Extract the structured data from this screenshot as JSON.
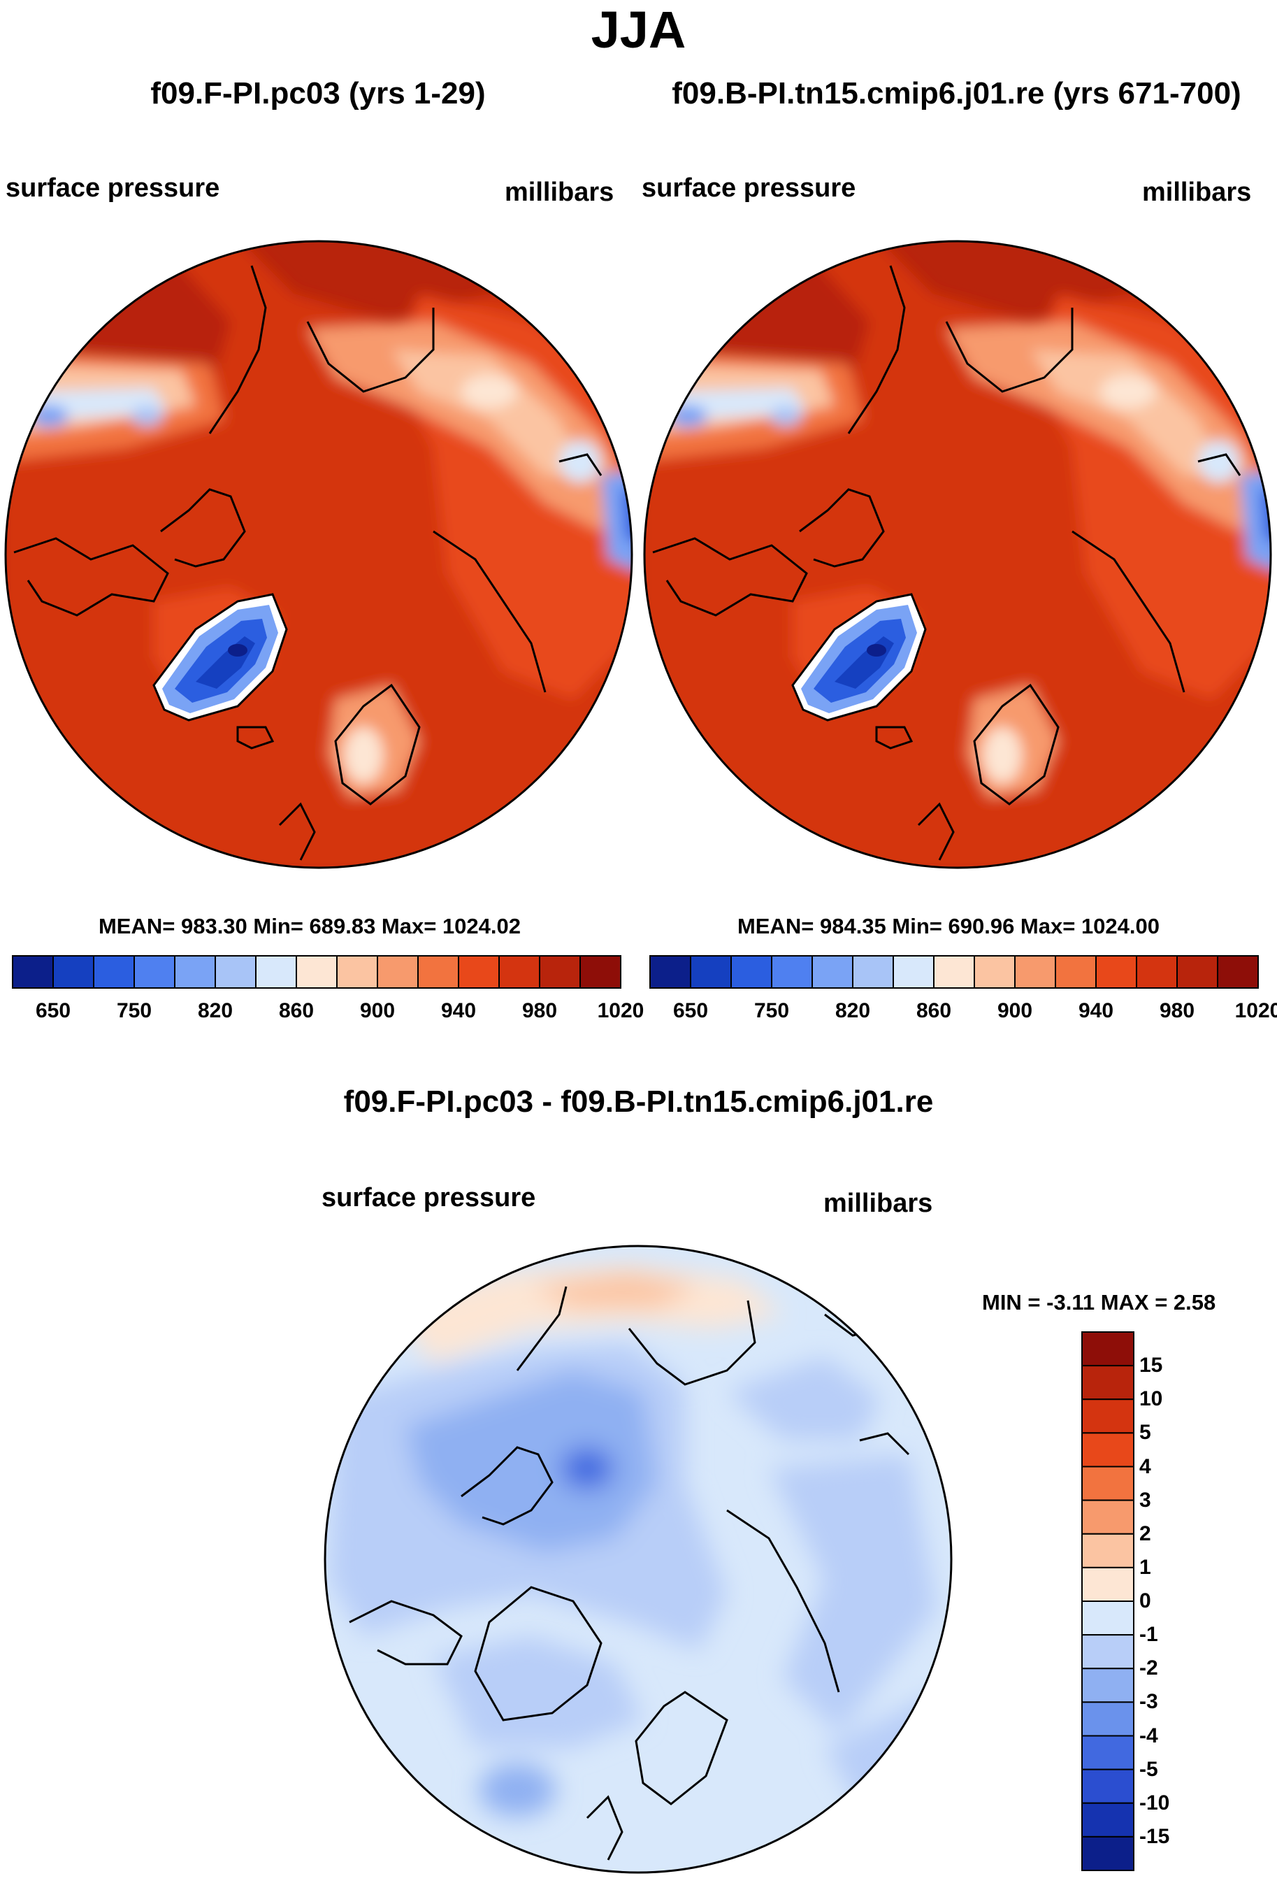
{
  "title": "JJA",
  "panels": [
    {
      "subtitle": "f09.F-PI.pc03 (yrs 1-29)",
      "left_label": "surface pressure",
      "right_label": "millibars",
      "stats": "MEAN= 983.30  Min= 689.83  Max= 1024.02",
      "colorbar_ticks": [
        "650",
        "750",
        "820",
        "860",
        "900",
        "940",
        "980",
        "1020"
      ]
    },
    {
      "subtitle": "f09.B-PI.tn15.cmip6.j01.re (yrs 671-700)",
      "left_label": "surface pressure",
      "right_label": "millibars",
      "stats": "MEAN= 984.35  Min= 690.96  Max= 1024.00",
      "colorbar_ticks": [
        "650",
        "750",
        "820",
        "860",
        "900",
        "940",
        "980",
        "1020"
      ]
    }
  ],
  "diff_panel": {
    "subtitle": "f09.F-PI.pc03 - f09.B-PI.tn15.cmip6.j01.re",
    "left_label": "surface pressure",
    "right_label": "millibars",
    "minmax": "MIN =  -3.11 MAX =   2.58",
    "colorbar_ticks": [
      "15",
      "10",
      "5",
      "4",
      "3",
      "2",
      "1",
      "0",
      "-1",
      "-2",
      "-3",
      "-4",
      "-5",
      "-10",
      "-15"
    ]
  },
  "colors": {
    "abs_scale": [
      "#0c1f8a",
      "#1540c0",
      "#2b5ee0",
      "#4f80f0",
      "#7aa3f5",
      "#a8c4f7",
      "#d8e8fb",
      "#fde6d4",
      "#fbc4a2",
      "#f79a6d",
      "#f2733f",
      "#e8481a",
      "#d43410",
      "#b8240c",
      "#8e0e08"
    ],
    "diff_scale": [
      "#8e0e08",
      "#b8240c",
      "#d43410",
      "#e8481a",
      "#f2733f",
      "#f79a6d",
      "#fbc4a2",
      "#fde6d4",
      "#d8e8fb",
      "#b8cef8",
      "#8fb0f2",
      "#6a92ec",
      "#4169e0",
      "#2b4ed0",
      "#1533b0",
      "#0c1f8a"
    ]
  }
}
